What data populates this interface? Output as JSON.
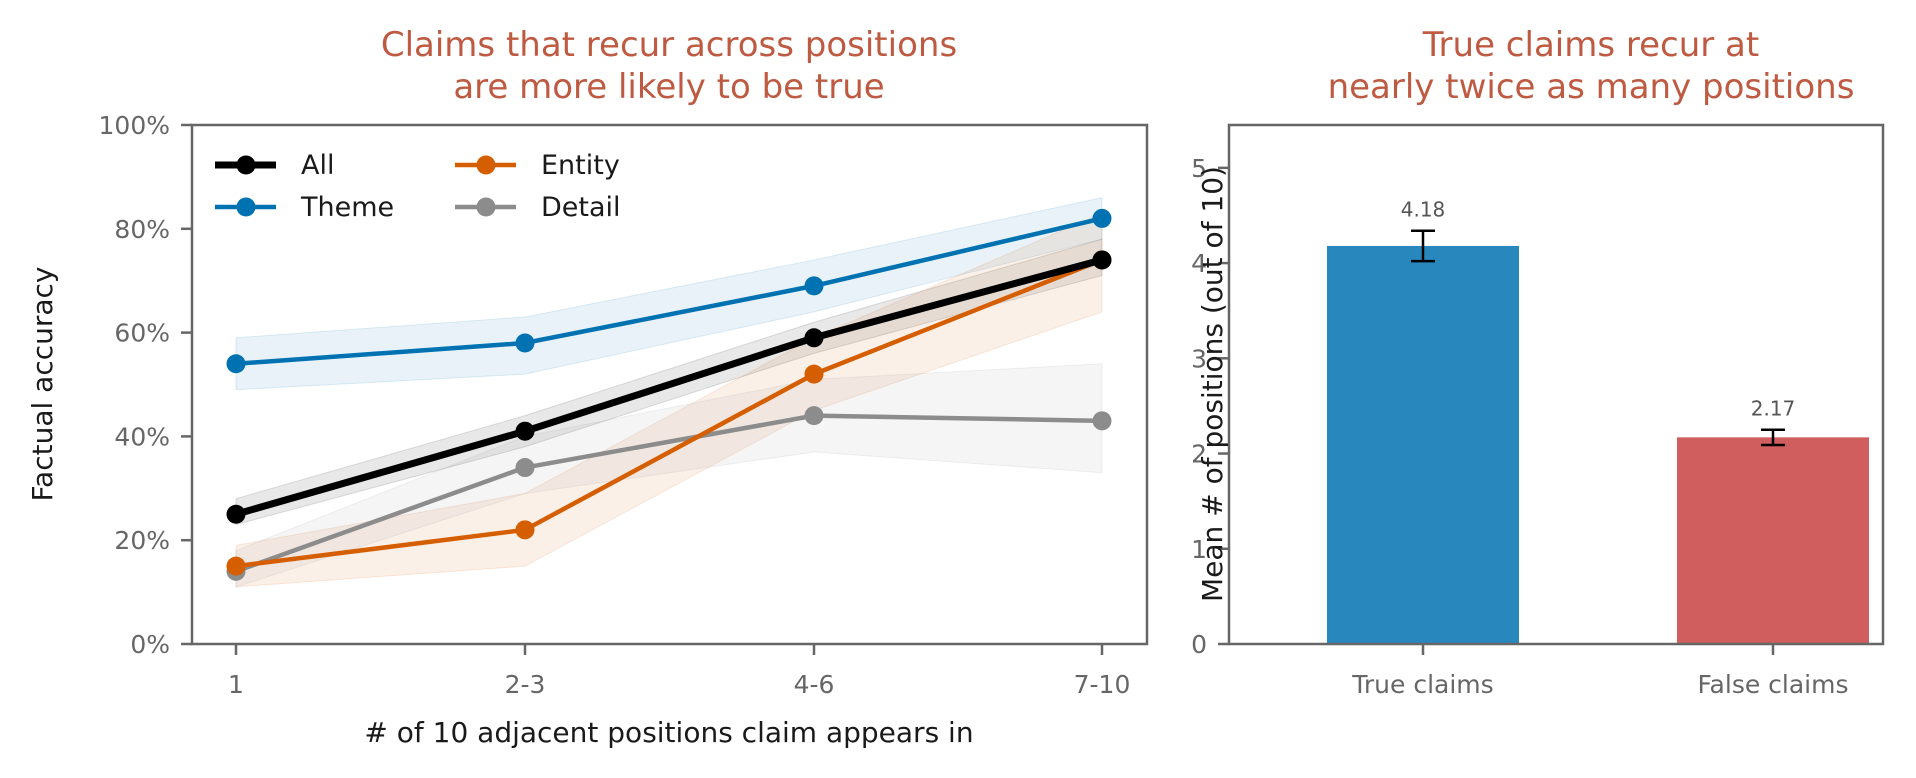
{
  "chart_data": [
    {
      "type": "line",
      "title": [
        "Claims that recur across positions",
        "are more likely to be true"
      ],
      "xlabel": "# of 10 adjacent positions claim appears in",
      "ylabel": "Factual accuracy",
      "categories": [
        "1",
        "2-3",
        "4-6",
        "7-10"
      ],
      "ylim": [
        0,
        100
      ],
      "yticks": [
        "0%",
        "20%",
        "40%",
        "60%",
        "80%",
        "100%"
      ],
      "ytick_values": [
        0,
        20,
        40,
        60,
        80,
        100
      ],
      "legend_position": "upper-left",
      "grid": false,
      "series": [
        {
          "name": "All",
          "color": "#000000",
          "values": [
            25,
            41,
            59,
            74
          ],
          "lower": [
            23,
            38,
            56,
            71
          ],
          "upper": [
            28,
            44,
            62,
            78
          ]
        },
        {
          "name": "Theme",
          "color": "#0072b2",
          "values": [
            54,
            58,
            69,
            82
          ],
          "lower": [
            49,
            52,
            64,
            78
          ],
          "upper": [
            59,
            63,
            74,
            86
          ]
        },
        {
          "name": "Entity",
          "color": "#d55e00",
          "values": [
            15,
            22,
            52,
            74
          ],
          "lower": [
            11,
            15,
            45,
            64
          ],
          "upper": [
            19,
            29,
            59,
            83
          ]
        },
        {
          "name": "Detail",
          "color": "#8c8c8c",
          "values": [
            14,
            34,
            44,
            43
          ],
          "lower": [
            11,
            29,
            37,
            33
          ],
          "upper": [
            18,
            40,
            51,
            54
          ]
        }
      ]
    },
    {
      "type": "bar",
      "title": [
        "True claims recur at",
        "nearly twice as many positions"
      ],
      "xlabel": "",
      "ylabel": "Mean # of positions (out of 10)",
      "categories": [
        "True claims",
        "False claims"
      ],
      "values": [
        4.18,
        2.17
      ],
      "errors": [
        0.16,
        0.08
      ],
      "value_labels": [
        "4.18",
        "2.17"
      ],
      "colors": [
        "#2887bd",
        "#d05e5e"
      ],
      "ylim": [
        0,
        5.45
      ],
      "yticks": [
        "0",
        "1",
        "2",
        "3",
        "4",
        "5"
      ],
      "ytick_values": [
        0,
        1,
        2,
        3,
        4,
        5
      ],
      "grid": false
    }
  ]
}
